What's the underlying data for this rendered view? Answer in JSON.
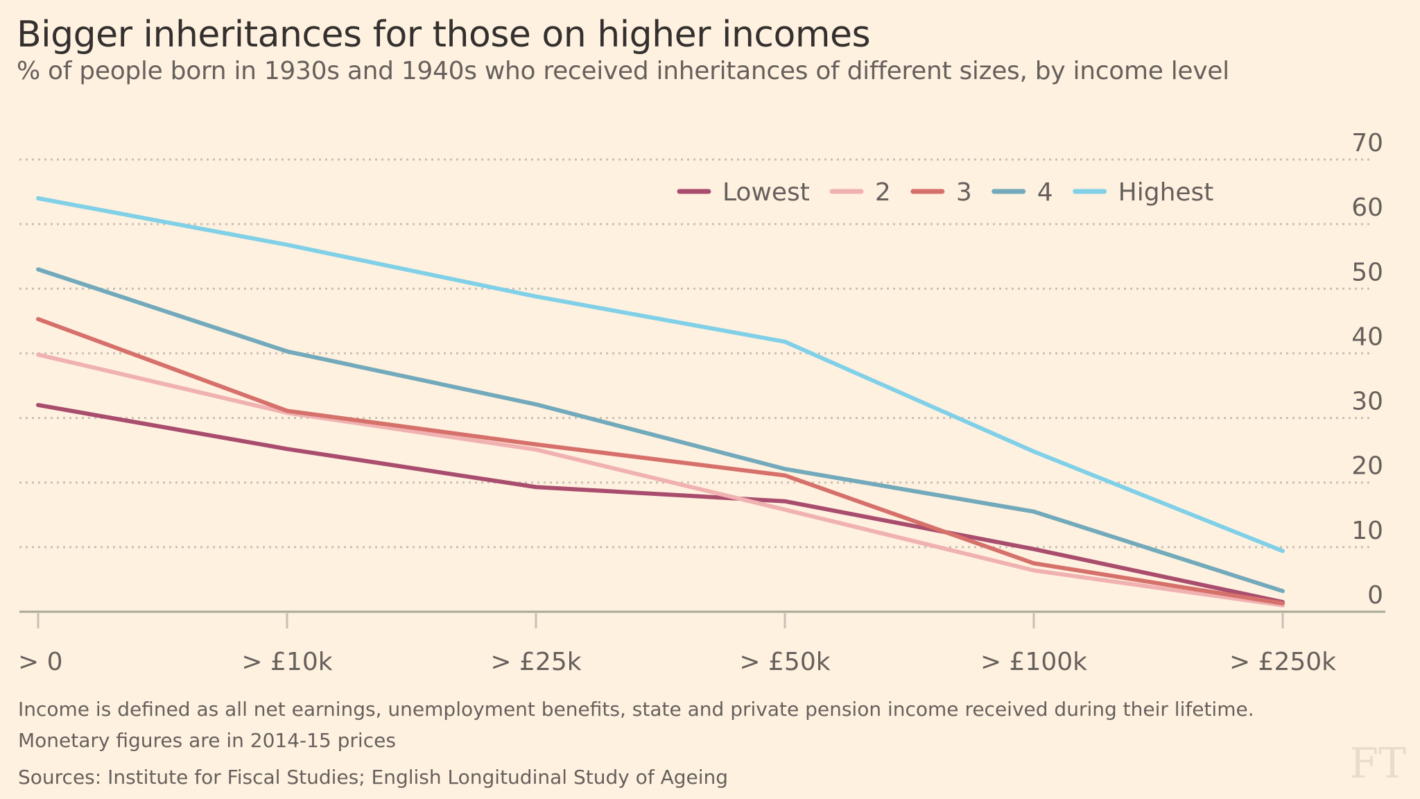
{
  "header": {
    "title": "Bigger inheritances for those on higher incomes",
    "subtitle": "% of people born in 1930s and 1940s who received inheritances of different sizes, by income level"
  },
  "chart_data": {
    "type": "line",
    "title": "Bigger inheritances for those on higher incomes",
    "subtitle": "% of people born in 1930s and 1940s who received inheritances of different sizes, by income level",
    "xlabel": "",
    "ylabel": "",
    "categories": [
      "> 0",
      "> £10k",
      "> £25k",
      "> £50k",
      "> £100k",
      "> £250k"
    ],
    "ylim": [
      0,
      70
    ],
    "yticks": [
      0,
      10,
      20,
      30,
      40,
      50,
      60,
      70
    ],
    "y_axis_side": "right",
    "grid": true,
    "legend_position": "top-right",
    "series": [
      {
        "name": "Lowest",
        "color": "#a94d6e",
        "values": [
          32.0,
          25.2,
          19.3,
          17.1,
          9.7,
          1.5
        ]
      },
      {
        "name": "2",
        "color": "#f0b1b1",
        "values": [
          39.8,
          30.8,
          25.1,
          15.8,
          6.4,
          1.0
        ]
      },
      {
        "name": "3",
        "color": "#d6706b",
        "values": [
          45.3,
          31.1,
          25.9,
          21.1,
          7.5,
          1.3
        ]
      },
      {
        "name": "4",
        "color": "#72aabb",
        "values": [
          53.0,
          40.3,
          32.1,
          22.1,
          15.5,
          3.2
        ]
      },
      {
        "name": "Highest",
        "color": "#80d0e8",
        "values": [
          64.0,
          56.8,
          48.8,
          41.8,
          24.8,
          9.4
        ]
      }
    ]
  },
  "footer": {
    "note_line1": "Income is defined as all net earnings, unemployment benefits, state and private pension income received during their lifetime.",
    "note_line2": "Monetary figures are in 2014-15 prices",
    "sources": "Sources: Institute for Fiscal Studies; English Longitudinal Study of Ageing",
    "logo": "FT"
  }
}
